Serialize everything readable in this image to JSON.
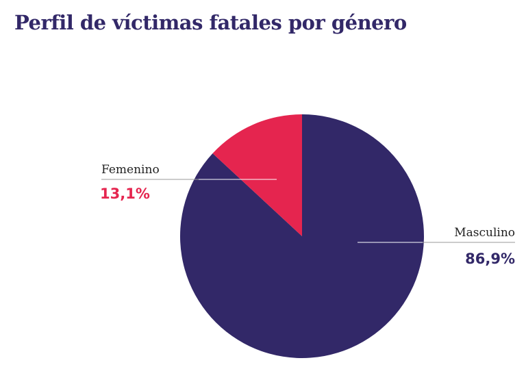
{
  "title": "Perfil de víctimas fatales por género",
  "colors": {
    "title": "#322868",
    "femenino": "#E5254F",
    "masculino": "#322868",
    "leader": "#ffffff"
  },
  "chart_data": {
    "type": "pie",
    "title": "Perfil de víctimas fatales por género",
    "slices": [
      {
        "label": "Masculino",
        "value": 86.9,
        "display": "86,9%",
        "color": "#322868"
      },
      {
        "label": "Femenino",
        "value": 13.1,
        "display": "13,1%",
        "color": "#E5254F"
      }
    ],
    "start_angle": "12 o'clock",
    "direction": "clockwise",
    "legend": "none",
    "labels": "outside with leader lines"
  }
}
